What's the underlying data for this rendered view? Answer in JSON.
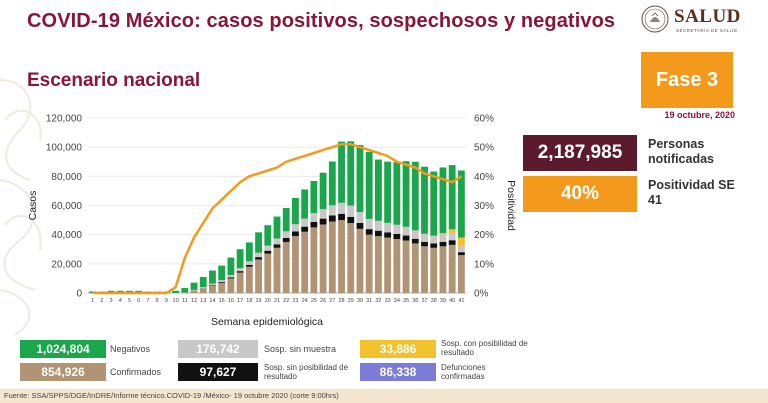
{
  "header": {
    "title": "COVID-19 México: casos positivos, sospechosos y negativos",
    "subtitle": "Escenario nacional"
  },
  "logo": {
    "text": "SALUD",
    "sub": "SECRETARÍA DE SALUD"
  },
  "phase": {
    "label": "Fase 3",
    "date": "19 octubre, 2020"
  },
  "kpis": {
    "notified_value": "2,187,985",
    "notified_label": "Personas notificadas",
    "positivity_value": "40%",
    "positivity_label": "Positividad SE 41"
  },
  "legend": {
    "negatives_value": "1,024,804",
    "negatives_label": "Negativos",
    "confirmed_value": "854,926",
    "confirmed_label": "Confirmados",
    "no_sample_value": "176,742",
    "no_sample_label": "Sosp. sin muestra",
    "no_result_possible_value": "97,627",
    "no_result_possible_label": "Sosp. sin posibilidad de resultado",
    "possible_result_value": "33,886",
    "possible_result_label": "Sosp. con posibilidad de resultado",
    "deaths_value": "86,338",
    "deaths_label": "Defunciones confirmadas"
  },
  "footer": {
    "source": "Fuente: SSA/SPPS/DGE/InDRE/Informe técnico.COVID-19 /México- 19 octubre 2020 (corte 9:00hrs)"
  },
  "colors": {
    "negatives": "#1aa64a",
    "confirmed": "#b09474",
    "no_sample": "#c8c8c8",
    "no_result": "#111111",
    "possible_result": "#f2c12e",
    "deaths": "#7b7bd8",
    "positivity": "#f39a1d",
    "title": "#8a1538"
  },
  "chart_data": {
    "type": "bar",
    "stacked": true,
    "xlabel": "Semana epidemiológica",
    "ylabel": "Casos",
    "y2label": "Positividad",
    "ylim": [
      0,
      120000
    ],
    "y2lim": [
      0,
      60
    ],
    "yticks": [
      "0",
      "20,000",
      "40,000",
      "60,000",
      "80,000",
      "100,000",
      "120,000"
    ],
    "y2ticks": [
      "0%",
      "10%",
      "20%",
      "30%",
      "40%",
      "50%",
      "60%"
    ],
    "categories": [
      "1",
      "2",
      "3",
      "4",
      "5",
      "6",
      "7",
      "8",
      "9",
      "10",
      "11",
      "12",
      "13",
      "14",
      "15",
      "16",
      "17",
      "18",
      "19",
      "20",
      "21",
      "22",
      "23",
      "24",
      "25",
      "26",
      "27",
      "28",
      "29",
      "30",
      "31",
      "32",
      "33",
      "34",
      "35",
      "36",
      "37",
      "38",
      "39",
      "40",
      "41"
    ],
    "series": [
      {
        "name": "Confirmados",
        "values": [
          0,
          0,
          0,
          0,
          0,
          0,
          0,
          0,
          0,
          50,
          300,
          1500,
          3000,
          5000,
          7000,
          10000,
          14000,
          18000,
          23000,
          27000,
          31000,
          35000,
          39000,
          42000,
          45000,
          47000,
          49000,
          50000,
          48000,
          44000,
          40000,
          39000,
          38000,
          37000,
          36000,
          34000,
          32000,
          31000,
          32000,
          33000,
          26000
        ]
      },
      {
        "name": "Sosp. sin posibilidad de resultado",
        "values": [
          0,
          0,
          0,
          0,
          0,
          0,
          0,
          0,
          0,
          0,
          0,
          100,
          200,
          400,
          600,
          800,
          1000,
          1300,
          1600,
          2000,
          2400,
          2800,
          3200,
          3500,
          3800,
          4000,
          4200,
          4300,
          4200,
          4000,
          3800,
          3700,
          3600,
          3500,
          3400,
          3200,
          3100,
          3000,
          3100,
          3200,
          2000
        ]
      },
      {
        "name": "Sosp. sin muestra",
        "values": [
          0,
          0,
          0,
          0,
          0,
          0,
          0,
          0,
          0,
          0,
          100,
          500,
          800,
          1000,
          1200,
          1500,
          2000,
          2400,
          3000,
          3500,
          4000,
          4500,
          5000,
          5500,
          6000,
          6500,
          7000,
          7500,
          7800,
          7500,
          7000,
          6800,
          6500,
          6300,
          6000,
          5800,
          5500,
          5300,
          5000,
          4500,
          4000
        ]
      },
      {
        "name": "Sosp. con posibilidad de resultado",
        "values": [
          0,
          0,
          0,
          0,
          0,
          0,
          0,
          0,
          0,
          0,
          0,
          0,
          0,
          0,
          0,
          0,
          0,
          0,
          0,
          0,
          0,
          0,
          0,
          0,
          0,
          0,
          0,
          0,
          0,
          0,
          0,
          0,
          0,
          0,
          0,
          0,
          0,
          0,
          1000,
          3000,
          6000
        ]
      },
      {
        "name": "Negativos",
        "values": [
          1000,
          1000,
          1500,
          1500,
          1500,
          1500,
          1000,
          1000,
          1000,
          1500,
          3000,
          5000,
          7000,
          9000,
          10000,
          12000,
          13000,
          13000,
          14000,
          14000,
          15000,
          16000,
          18000,
          20000,
          22000,
          25000,
          30000,
          42000,
          44000,
          46000,
          46000,
          42000,
          42000,
          43000,
          45000,
          47000,
          46000,
          44000,
          45000,
          44000,
          46000
        ]
      }
    ],
    "line": {
      "name": "Positividad",
      "axis": "y2",
      "values": [
        0,
        0,
        0,
        0,
        0,
        0,
        0,
        0,
        0,
        2,
        12,
        19,
        24,
        29,
        32,
        35,
        38,
        40,
        41,
        42,
        43,
        45,
        46,
        47,
        48,
        49,
        50,
        51,
        51,
        50,
        49,
        48,
        47,
        45,
        44,
        43,
        41,
        40,
        39,
        38,
        40
      ]
    }
  }
}
